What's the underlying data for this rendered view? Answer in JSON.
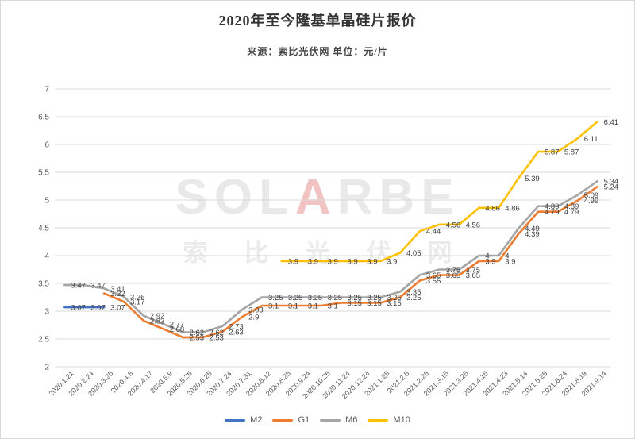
{
  "header": {
    "title": "2020年至今隆基单晶硅片报价",
    "subtitle": "来源：索比光伏网 单位：元/片"
  },
  "watermark": {
    "latin_pre": "SOL",
    "latin_accent": "A",
    "latin_post": "RBE",
    "cjk": "索比光伏网"
  },
  "chart_data": {
    "type": "line",
    "title": "2020年至今隆基单晶硅片报价",
    "source": "索比光伏网",
    "unit": "元/片",
    "grid": true,
    "legend_position": "bottom",
    "ylim": [
      2,
      7
    ],
    "yticks": [
      2,
      2.5,
      3,
      3.5,
      4,
      4.5,
      5,
      5.5,
      6,
      6.5,
      7
    ],
    "categories": [
      "2020.1.21",
      "2020.2.24",
      "2020.3.25",
      "2020.4.8",
      "2020.4.17",
      "2020.5.9",
      "2020.5.25",
      "2020.6.25",
      "2020.7.24",
      "2020.7.31",
      "2020.8.12",
      "2020.8.25",
      "2020.9.24",
      "2020.10.26",
      "2020.11.24",
      "2020.12.24",
      "2021.1.25",
      "2021.2.5",
      "2021.2.26",
      "2021.3.15",
      "2021.3.25",
      "2021.4.15",
      "2021.4.23",
      "2021.5.14",
      "2021.5.25",
      "2021.6.24",
      "2021.8.19",
      "2021.9.14"
    ],
    "series": [
      {
        "name": "M2",
        "color": "#4472C4",
        "values": [
          3.07,
          3.07,
          3.07,
          null,
          null,
          null,
          null,
          null,
          null,
          null,
          null,
          null,
          null,
          null,
          null,
          null,
          null,
          null,
          null,
          null,
          null,
          null,
          null,
          null,
          null,
          null,
          null,
          null
        ]
      },
      {
        "name": "G1",
        "color": "#ED7D31",
        "values": [
          null,
          null,
          3.32,
          3.17,
          2.83,
          2.68,
          2.53,
          2.53,
          2.63,
          2.9,
          3.1,
          3.1,
          3.1,
          3.1,
          3.15,
          3.15,
          3.15,
          3.25,
          3.55,
          3.65,
          3.65,
          3.9,
          3.9,
          4.39,
          4.79,
          4.79,
          4.99,
          5.24
        ]
      },
      {
        "name": "M6",
        "color": "#A5A5A5",
        "values": [
          3.47,
          3.47,
          3.41,
          3.26,
          2.92,
          2.77,
          2.62,
          2.62,
          2.73,
          3.03,
          3.25,
          3.25,
          3.25,
          3.25,
          3.25,
          3.25,
          3.25,
          3.35,
          3.65,
          3.75,
          3.75,
          4,
          4,
          4.49,
          4.89,
          4.89,
          5.09,
          5.34
        ]
      },
      {
        "name": "M10",
        "color": "#FFC000",
        "values": [
          null,
          null,
          null,
          null,
          null,
          null,
          null,
          null,
          null,
          null,
          null,
          3.9,
          3.9,
          3.9,
          3.9,
          3.9,
          3.9,
          4.05,
          4.44,
          4.56,
          4.56,
          4.86,
          4.86,
          5.39,
          5.87,
          5.87,
          6.11,
          6.41
        ]
      }
    ]
  },
  "style": {
    "grid_color": "#d9d9d9",
    "axis_text_color": "#595959",
    "data_label_color": "#404040"
  }
}
